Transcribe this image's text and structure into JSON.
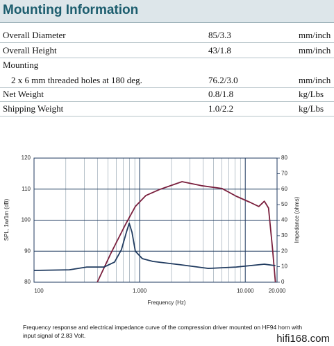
{
  "header": {
    "title": "Mounting Information"
  },
  "table": {
    "rows": [
      [
        "Overall Diameter",
        "85/3.3",
        "mm/inch"
      ],
      [
        "Overall Height",
        "43/1.8",
        "mm/inch"
      ],
      [
        "Mounting"
      ],
      [
        "2 x 6 mm threaded holes at 180 deg.",
        "76.2/3.0",
        "mm/inch"
      ],
      [
        "Net Weight",
        "0.8/1.8",
        "kg/Lbs"
      ],
      [
        "Shipping Weight",
        "1.0/2.2",
        "kg/Lbs"
      ]
    ]
  },
  "chart_data": {
    "type": "line",
    "x_label": "Frequency (Hz)",
    "y_label": "SPL, 1w/1m (dB)",
    "y2_label": "Impedance (ohms)",
    "log_x": true,
    "xlim": [
      100,
      20000
    ],
    "xticks": [
      100,
      {
        "value": 1000,
        "label": "1.000"
      },
      {
        "value": 10000,
        "label": "10.000"
      },
      {
        "value": 20000,
        "label": "20.000"
      }
    ],
    "x_minor_ticks": [
      200,
      300,
      400,
      500,
      600,
      700,
      800,
      900,
      2000,
      3000,
      4000,
      5000,
      6000,
      7000,
      8000,
      9000
    ],
    "ylim": [
      80,
      120
    ],
    "yticks": [
      80,
      90,
      100,
      110,
      120
    ],
    "y2lim": [
      0,
      80
    ],
    "y2ticks": [
      0,
      10,
      20,
      30,
      40,
      50,
      60,
      70,
      80
    ],
    "series": [
      {
        "color": "#7a1f3d",
        "x": [
          397,
          536,
          727,
          911,
          1142,
          1549,
          2522,
          3845,
          6037,
          8217,
          11190,
          13430,
          15160,
          16590,
          18160,
          19280
        ],
        "values": [
          80,
          89.4,
          98.3,
          104.4,
          107.9,
          109.9,
          112.4,
          111.1,
          110.2,
          107.7,
          105.7,
          104.4,
          106.1,
          103.9,
          90.5,
          80
        ]
      },
      {
        "color": "#1f3a5f",
        "axis": "y2",
        "x": [
          100,
          216,
          316,
          461,
          579,
          673,
          749,
          797,
          846,
          911,
          1061,
          1334,
          2447,
          4475,
          8217,
          15160,
          19280
        ],
        "values": [
          7.6,
          8.0,
          9.8,
          9.8,
          13,
          21,
          32.2,
          38,
          32.2,
          20,
          15.2,
          13.4,
          11.2,
          8.9,
          9.8,
          11.6,
          10.7
        ]
      }
    ]
  },
  "caption": "Frequency response and electrical impedance curve of the compression driver mounted on HF94 horn with input signal of 2.83 Volt.",
  "watermark": "hifi168.com"
}
